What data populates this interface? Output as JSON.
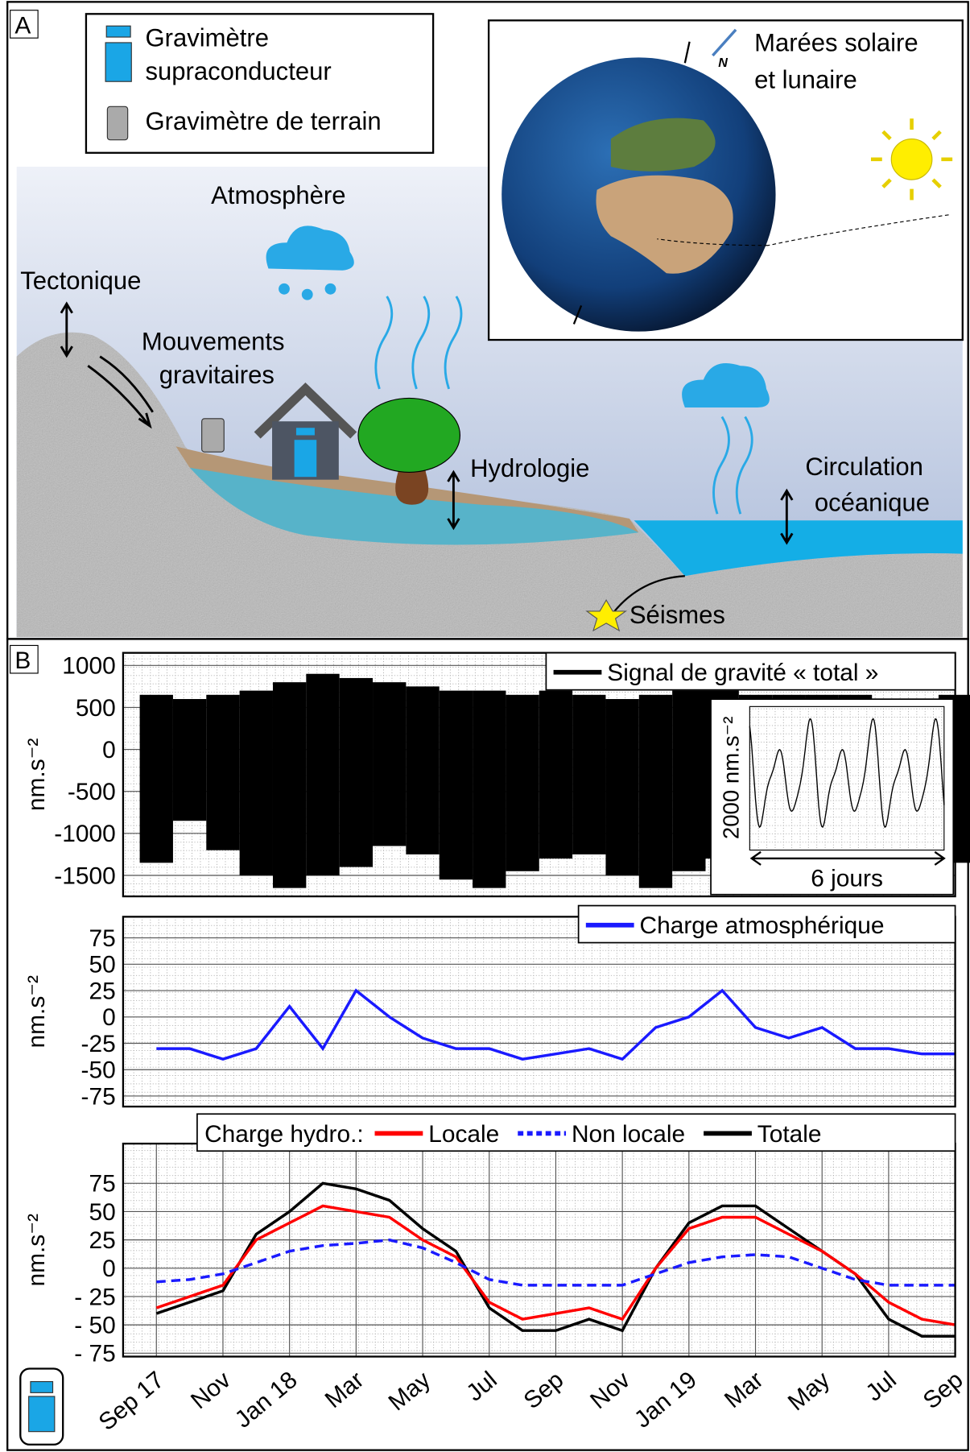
{
  "panel_a": {
    "label": "A",
    "legend": {
      "superconducting": [
        "Gravimètre",
        "supraconducteur"
      ],
      "field": "Gravimètre de terrain"
    },
    "tides": [
      "Marées solaire",
      "et lunaire"
    ],
    "north": "N",
    "atmosphere": "Atmosphère",
    "tectonics": "Tectonique",
    "mass_movements": [
      "Mouvements",
      "gravitaires"
    ],
    "hydrology": "Hydrologie",
    "ocean": [
      "Circulation",
      "océanique"
    ],
    "earthquakes": "Séismes"
  },
  "panel_b": {
    "label": "B"
  },
  "chart_data": [
    {
      "type": "range",
      "y_label": "nm.s⁻²",
      "x": [
        "2017-09",
        "2017-10",
        "2017-11",
        "2017-12",
        "2018-01",
        "2018-02",
        "2018-03",
        "2018-04",
        "2018-05",
        "2018-06",
        "2018-07",
        "2018-08",
        "2018-09",
        "2018-10",
        "2018-11",
        "2018-12",
        "2019-01",
        "2019-02",
        "2019-03",
        "2019-04",
        "2019-05",
        "2019-06",
        "2019-07",
        "2019-08",
        "2019-09"
      ],
      "series": [
        {
          "name": "Signal de gravité « total »",
          "color": "#000000",
          "high": [
            650,
            600,
            650,
            700,
            800,
            900,
            850,
            800,
            750,
            700,
            700,
            650,
            700,
            650,
            600,
            650,
            700,
            700,
            650,
            650,
            650,
            650,
            600,
            600,
            650
          ],
          "low": [
            -1350,
            -850,
            -1200,
            -1500,
            -1650,
            -1500,
            -1400,
            -1150,
            -1250,
            -1550,
            -1650,
            -1450,
            -1300,
            -1250,
            -1500,
            -1650,
            -1450,
            -1300,
            -1150,
            -1100,
            -1250,
            -1450,
            -1550,
            -1450,
            -1350
          ]
        }
      ],
      "ylim": [
        -1750,
        1150
      ],
      "yticks": [
        -1500,
        -1000,
        -500,
        0,
        500,
        1000
      ],
      "grid": true,
      "inset": {
        "y_label": "2000 nm.s⁻²",
        "x_label": "6 jours"
      }
    },
    {
      "type": "line",
      "y_label": "nm.s⁻²",
      "x": [
        "2017-09",
        "2017-10",
        "2017-11",
        "2017-12",
        "2018-01",
        "2018-02",
        "2018-03",
        "2018-04",
        "2018-05",
        "2018-06",
        "2018-07",
        "2018-08",
        "2018-09",
        "2018-10",
        "2018-11",
        "2018-12",
        "2019-01",
        "2019-02",
        "2019-03",
        "2019-04",
        "2019-05",
        "2019-06",
        "2019-07",
        "2019-08",
        "2019-09"
      ],
      "series": [
        {
          "name": "Charge atmosphérique",
          "color": "#1a1aff",
          "values": [
            -30,
            -30,
            -40,
            -30,
            10,
            -30,
            25,
            0,
            -20,
            -30,
            -30,
            -40,
            -35,
            -30,
            -40,
            -10,
            0,
            25,
            -10,
            -20,
            -10,
            -30,
            -30,
            -35,
            -35
          ]
        }
      ],
      "ylim": [
        -85,
        95
      ],
      "yticks": [
        -75,
        -50,
        -25,
        0,
        25,
        50,
        75
      ],
      "grid": true
    },
    {
      "type": "line",
      "y_label": "nm.s⁻²",
      "legend_title": "Charge hydro.:",
      "x": [
        "2017-09",
        "2017-10",
        "2017-11",
        "2017-12",
        "2018-01",
        "2018-02",
        "2018-03",
        "2018-04",
        "2018-05",
        "2018-06",
        "2018-07",
        "2018-08",
        "2018-09",
        "2018-10",
        "2018-11",
        "2018-12",
        "2019-01",
        "2019-02",
        "2019-03",
        "2019-04",
        "2019-05",
        "2019-06",
        "2019-07",
        "2019-08",
        "2019-09"
      ],
      "series": [
        {
          "name": "Totale",
          "color": "#000000",
          "values": [
            -40,
            -30,
            -20,
            30,
            50,
            75,
            70,
            60,
            35,
            15,
            -35,
            -55,
            -55,
            -45,
            -55,
            0,
            40,
            55,
            55,
            35,
            15,
            -5,
            -45,
            -60,
            -60
          ]
        },
        {
          "name": "Locale",
          "color": "#ff0000",
          "values": [
            -35,
            -25,
            -15,
            25,
            40,
            55,
            50,
            45,
            25,
            10,
            -30,
            -45,
            -40,
            -35,
            -45,
            0,
            35,
            45,
            45,
            30,
            15,
            -5,
            -30,
            -45,
            -50
          ]
        },
        {
          "name": "Non locale",
          "color": "#1a1aff",
          "dashed": true,
          "values": [
            -12,
            -10,
            -5,
            5,
            15,
            20,
            22,
            25,
            18,
            5,
            -10,
            -15,
            -15,
            -15,
            -15,
            -5,
            5,
            10,
            12,
            10,
            0,
            -10,
            -15,
            -15,
            -15
          ]
        }
      ],
      "ylim": [
        -78,
        110
      ],
      "yticks": [
        {
          "value": -75,
          "label": "- 75"
        },
        {
          "value": -50,
          "label": "- 50"
        },
        {
          "value": -25,
          "label": "- 25"
        },
        0,
        25,
        50,
        75
      ],
      "xlim": [
        "2017-08",
        "2019-09"
      ],
      "xticks": [
        {
          "value": "2017-09",
          "label": "Sep 17"
        },
        {
          "value": "2017-11",
          "label": "Nov"
        },
        {
          "value": "2018-01",
          "label": "Jan 18"
        },
        {
          "value": "2018-03",
          "label": "Mar"
        },
        {
          "value": "2018-05",
          "label": "May"
        },
        {
          "value": "2018-07",
          "label": "Jul"
        },
        {
          "value": "2018-09",
          "label": "Sep"
        },
        {
          "value": "2018-11",
          "label": "Nov"
        },
        {
          "value": "2019-01",
          "label": "Jan 19"
        },
        {
          "value": "2019-03",
          "label": "Mar"
        },
        {
          "value": "2019-05",
          "label": "May"
        },
        {
          "value": "2019-07",
          "label": "Jul"
        },
        {
          "value": "2019-09",
          "label": "Sep"
        }
      ],
      "grid": true
    }
  ]
}
